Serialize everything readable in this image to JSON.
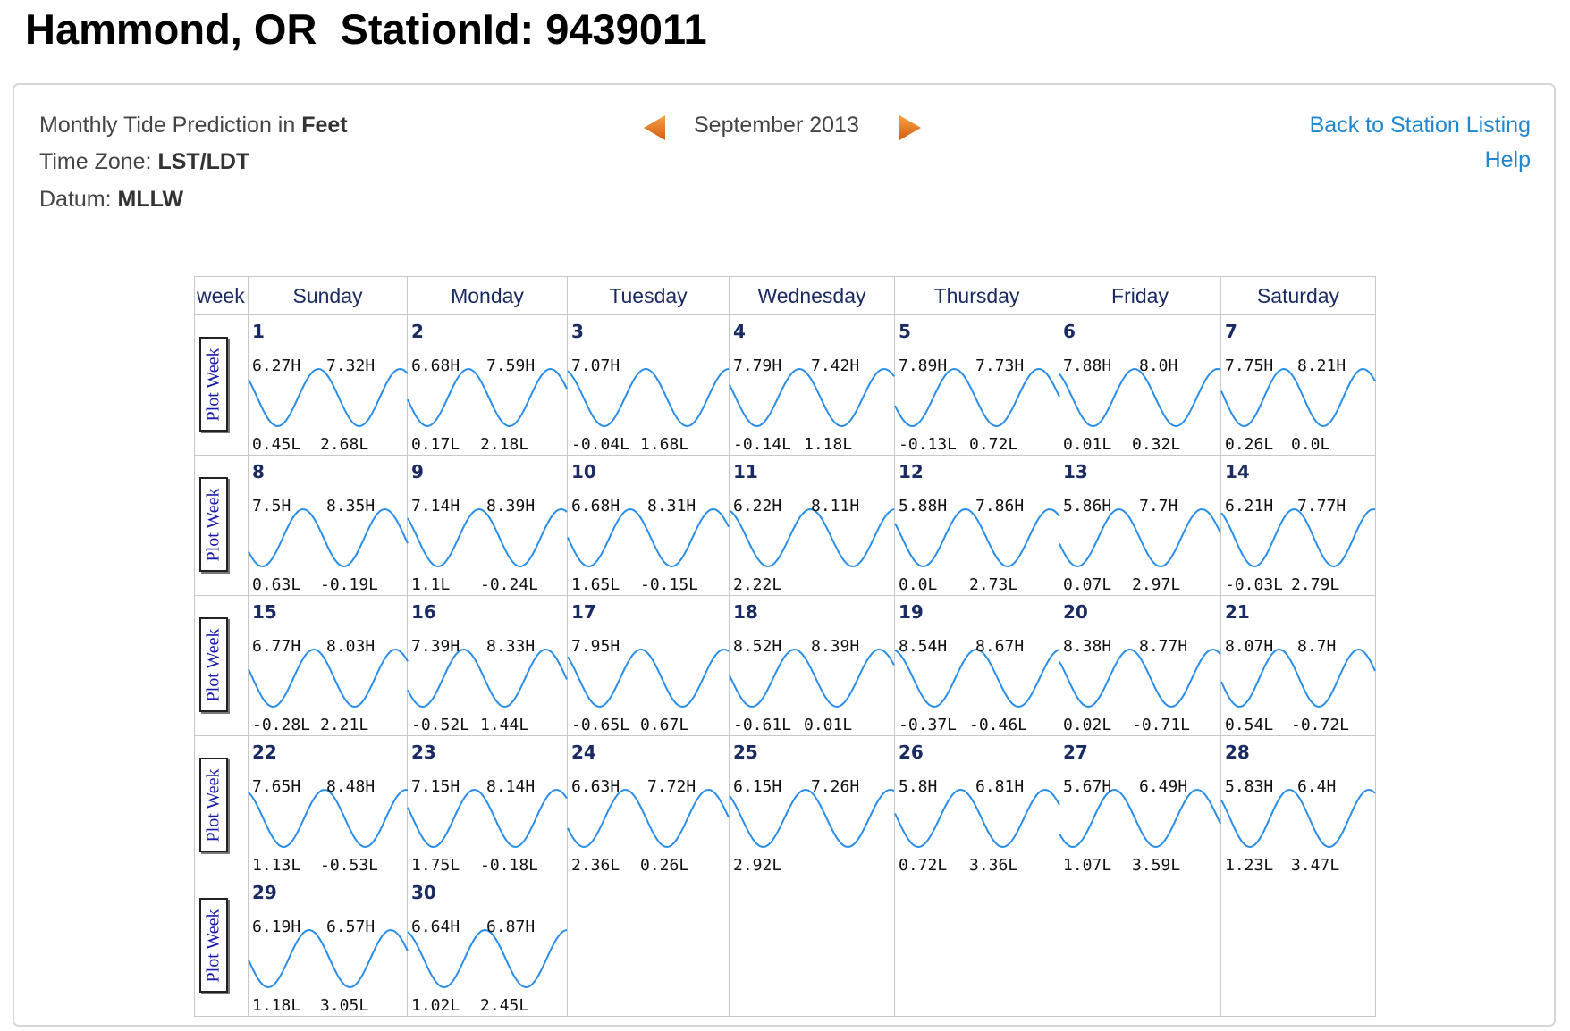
{
  "header": {
    "title": "Hammond, OR  StationId: 9439011"
  },
  "info": {
    "prediction_label": "Monthly Tide Prediction in ",
    "prediction_unit": "Feet",
    "timezone_label": "Time Zone: ",
    "timezone_value": "LST/LDT",
    "datum_label": "Datum: ",
    "datum_value": "MLLW"
  },
  "nav": {
    "month": "September 2013",
    "prev_icon": "prev-arrow-icon",
    "next_icon": "next-arrow-icon",
    "arrow_color": "#e8761a"
  },
  "links": {
    "back": "Back to Station Listing",
    "help": "Help",
    "color": "#1f87d0"
  },
  "calendar": {
    "week_header": "week",
    "days": [
      "Sunday",
      "Monday",
      "Tuesday",
      "Wednesday",
      "Thursday",
      "Friday",
      "Saturday"
    ],
    "plot_week_label": "Plot Week",
    "curve_color": "#2a8ee8",
    "weeks": [
      [
        {
          "day": "1",
          "highs": [
            "6.27H",
            "7.32H"
          ],
          "lows": [
            "0.45L",
            "2.68L"
          ]
        },
        {
          "day": "2",
          "highs": [
            "6.68H",
            "7.59H"
          ],
          "lows": [
            "0.17L",
            "2.18L"
          ]
        },
        {
          "day": "3",
          "highs": [
            "7.07H"
          ],
          "lows": [
            "-0.04L",
            "1.68L"
          ]
        },
        {
          "day": "4",
          "highs": [
            "7.79H",
            "7.42H"
          ],
          "lows": [
            "-0.14L",
            "1.18L"
          ]
        },
        {
          "day": "5",
          "highs": [
            "7.89H",
            "7.73H"
          ],
          "lows": [
            "-0.13L",
            "0.72L"
          ]
        },
        {
          "day": "6",
          "highs": [
            "7.88H",
            "8.0H"
          ],
          "lows": [
            "0.01L",
            "0.32L"
          ]
        },
        {
          "day": "7",
          "highs": [
            "7.75H",
            "8.21H"
          ],
          "lows": [
            "0.26L",
            "0.0L"
          ]
        }
      ],
      [
        {
          "day": "8",
          "highs": [
            "7.5H",
            "8.35H"
          ],
          "lows": [
            "0.63L",
            "-0.19L"
          ]
        },
        {
          "day": "9",
          "highs": [
            "7.14H",
            "8.39H"
          ],
          "lows": [
            "1.1L",
            "-0.24L"
          ]
        },
        {
          "day": "10",
          "highs": [
            "6.68H",
            "8.31H"
          ],
          "lows": [
            "1.65L",
            "-0.15L"
          ]
        },
        {
          "day": "11",
          "highs": [
            "6.22H",
            "8.11H"
          ],
          "lows": [
            "2.22L"
          ]
        },
        {
          "day": "12",
          "highs": [
            "5.88H",
            "7.86H"
          ],
          "lows": [
            "0.0L",
            "2.73L"
          ]
        },
        {
          "day": "13",
          "highs": [
            "5.86H",
            "7.7H"
          ],
          "lows": [
            "0.07L",
            "2.97L"
          ]
        },
        {
          "day": "14",
          "highs": [
            "6.21H",
            "7.77H"
          ],
          "lows": [
            "-0.03L",
            "2.79L"
          ]
        }
      ],
      [
        {
          "day": "15",
          "highs": [
            "6.77H",
            "8.03H"
          ],
          "lows": [
            "-0.28L",
            "2.21L"
          ]
        },
        {
          "day": "16",
          "highs": [
            "7.39H",
            "8.33H"
          ],
          "lows": [
            "-0.52L",
            "1.44L"
          ]
        },
        {
          "day": "17",
          "highs": [
            "7.95H"
          ],
          "lows": [
            "-0.65L",
            "0.67L"
          ]
        },
        {
          "day": "18",
          "highs": [
            "8.52H",
            "8.39H"
          ],
          "lows": [
            "-0.61L",
            "0.01L"
          ]
        },
        {
          "day": "19",
          "highs": [
            "8.54H",
            "8.67H"
          ],
          "lows": [
            "-0.37L",
            "-0.46L"
          ]
        },
        {
          "day": "20",
          "highs": [
            "8.38H",
            "8.77H"
          ],
          "lows": [
            "0.02L",
            "-0.71L"
          ]
        },
        {
          "day": "21",
          "highs": [
            "8.07H",
            "8.7H"
          ],
          "lows": [
            "0.54L",
            "-0.72L"
          ]
        }
      ],
      [
        {
          "day": "22",
          "highs": [
            "7.65H",
            "8.48H"
          ],
          "lows": [
            "1.13L",
            "-0.53L"
          ]
        },
        {
          "day": "23",
          "highs": [
            "7.15H",
            "8.14H"
          ],
          "lows": [
            "1.75L",
            "-0.18L"
          ]
        },
        {
          "day": "24",
          "highs": [
            "6.63H",
            "7.72H"
          ],
          "lows": [
            "2.36L",
            "0.26L"
          ]
        },
        {
          "day": "25",
          "highs": [
            "6.15H",
            "7.26H"
          ],
          "lows": [
            "2.92L"
          ]
        },
        {
          "day": "26",
          "highs": [
            "5.8H",
            "6.81H"
          ],
          "lows": [
            "0.72L",
            "3.36L"
          ]
        },
        {
          "day": "27",
          "highs": [
            "5.67H",
            "6.49H"
          ],
          "lows": [
            "1.07L",
            "3.59L"
          ]
        },
        {
          "day": "28",
          "highs": [
            "5.83H",
            "6.4H"
          ],
          "lows": [
            "1.23L",
            "3.47L"
          ]
        }
      ],
      [
        {
          "day": "29",
          "highs": [
            "6.19H",
            "6.57H"
          ],
          "lows": [
            "1.18L",
            "3.05L"
          ]
        },
        {
          "day": "30",
          "highs": [
            "6.64H",
            "6.87H"
          ],
          "lows": [
            "1.02L",
            "2.45L"
          ]
        },
        null,
        null,
        null,
        null,
        null
      ]
    ]
  }
}
